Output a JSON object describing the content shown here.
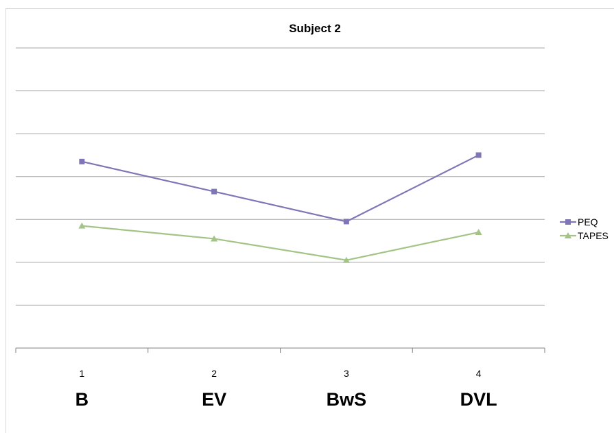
{
  "chart_data": {
    "type": "line",
    "title": "Subject 2",
    "x": [
      "1",
      "2",
      "3",
      "4"
    ],
    "categories": [
      "B",
      "EV",
      "BwS",
      "DVL"
    ],
    "series": [
      {
        "name": "PEQ",
        "values": [
          4.35,
          3.65,
          2.95,
          4.5
        ],
        "color": "#7f76b5",
        "marker": "square"
      },
      {
        "name": "TAPES",
        "values": [
          2.85,
          2.55,
          2.05,
          2.7
        ],
        "color": "#a3c486",
        "marker": "triangle"
      }
    ],
    "ylim": [
      0,
      7
    ],
    "grid": true,
    "legend": "right",
    "gridline_color": "#a6a6a6",
    "axis_color": "#808080"
  }
}
